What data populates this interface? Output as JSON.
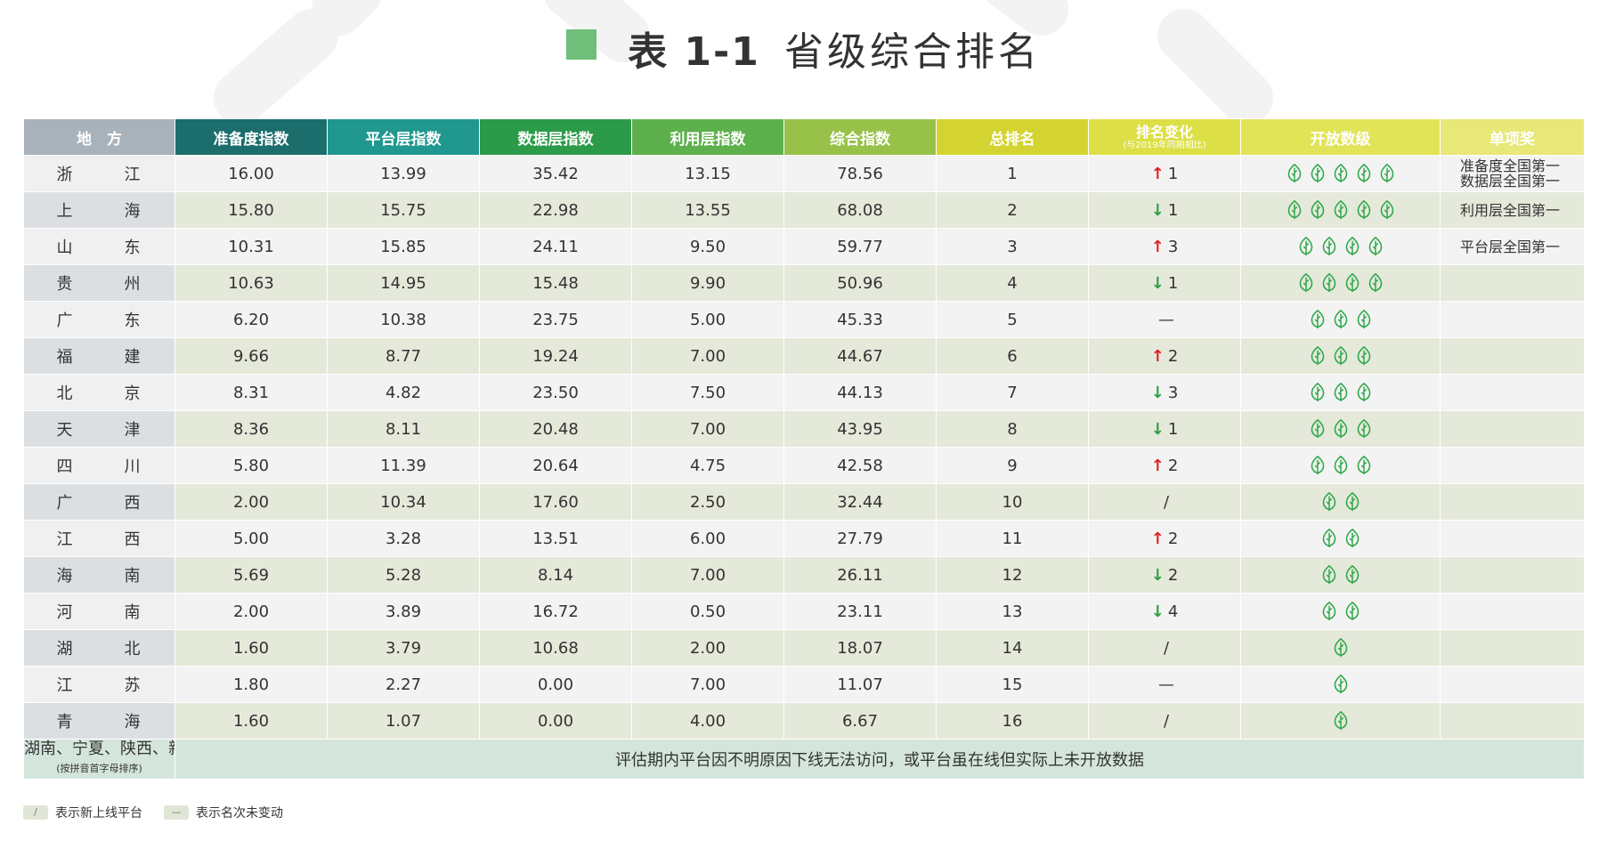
{
  "title": {
    "prefix": "表 1-1",
    "main": "省级综合排名"
  },
  "headers": {
    "region": "地　方",
    "readiness": "准备度指数",
    "platform": "平台层指数",
    "data": "数据层指数",
    "utilization": "利用层指数",
    "composite": "综合指数",
    "rank": "总排名",
    "change_main": "排名变化",
    "change_sub": "(与2019年同期相比)",
    "open_level": "开放数级",
    "award": "单项奖"
  },
  "header_colors": [
    "#a8b2ba",
    "#1c6e6c",
    "#20988f",
    "#2c9b49",
    "#5db04c",
    "#98c14a",
    "#d3d431",
    "#dcdf45",
    "#e2e458",
    "#e8e878"
  ],
  "rows": [
    {
      "region": "浙　江",
      "readiness": "16.00",
      "platform": "13.99",
      "data": "35.42",
      "utilization": "13.15",
      "composite": "78.56",
      "rank": "1",
      "change_dir": "up",
      "change_val": "1",
      "leaves": 5,
      "award": "准备度全国第一",
      "award2": "数据层全国第一"
    },
    {
      "region": "上　海",
      "readiness": "15.80",
      "platform": "15.75",
      "data": "22.98",
      "utilization": "13.55",
      "composite": "68.08",
      "rank": "2",
      "change_dir": "down",
      "change_val": "1",
      "leaves": 5,
      "award": "利用层全国第一",
      "award2": ""
    },
    {
      "region": "山　东",
      "readiness": "10.31",
      "platform": "15.85",
      "data": "24.11",
      "utilization": "9.50",
      "composite": "59.77",
      "rank": "3",
      "change_dir": "up",
      "change_val": "3",
      "leaves": 4,
      "award": "平台层全国第一",
      "award2": ""
    },
    {
      "region": "贵　州",
      "readiness": "10.63",
      "platform": "14.95",
      "data": "15.48",
      "utilization": "9.90",
      "composite": "50.96",
      "rank": "4",
      "change_dir": "down",
      "change_val": "1",
      "leaves": 4,
      "award": "",
      "award2": ""
    },
    {
      "region": "广　东",
      "readiness": "6.20",
      "platform": "10.38",
      "data": "23.75",
      "utilization": "5.00",
      "composite": "45.33",
      "rank": "5",
      "change_dir": "same",
      "change_val": "—",
      "leaves": 3,
      "award": "",
      "award2": ""
    },
    {
      "region": "福　建",
      "readiness": "9.66",
      "platform": "8.77",
      "data": "19.24",
      "utilization": "7.00",
      "composite": "44.67",
      "rank": "6",
      "change_dir": "up",
      "change_val": "2",
      "leaves": 3,
      "award": "",
      "award2": ""
    },
    {
      "region": "北　京",
      "readiness": "8.31",
      "platform": "4.82",
      "data": "23.50",
      "utilization": "7.50",
      "composite": "44.13",
      "rank": "7",
      "change_dir": "down",
      "change_val": "3",
      "leaves": 3,
      "award": "",
      "award2": ""
    },
    {
      "region": "天　津",
      "readiness": "8.36",
      "platform": "8.11",
      "data": "20.48",
      "utilization": "7.00",
      "composite": "43.95",
      "rank": "8",
      "change_dir": "down",
      "change_val": "1",
      "leaves": 3,
      "award": "",
      "award2": ""
    },
    {
      "region": "四　川",
      "readiness": "5.80",
      "platform": "11.39",
      "data": "20.64",
      "utilization": "4.75",
      "composite": "42.58",
      "rank": "9",
      "change_dir": "up",
      "change_val": "2",
      "leaves": 3,
      "award": "",
      "award2": ""
    },
    {
      "region": "广　西",
      "readiness": "2.00",
      "platform": "10.34",
      "data": "17.60",
      "utilization": "2.50",
      "composite": "32.44",
      "rank": "10",
      "change_dir": "new",
      "change_val": "/",
      "leaves": 2,
      "award": "",
      "award2": ""
    },
    {
      "region": "江　西",
      "readiness": "5.00",
      "platform": "3.28",
      "data": "13.51",
      "utilization": "6.00",
      "composite": "27.79",
      "rank": "11",
      "change_dir": "up",
      "change_val": "2",
      "leaves": 2,
      "award": "",
      "award2": ""
    },
    {
      "region": "海　南",
      "readiness": "5.69",
      "platform": "5.28",
      "data": "8.14",
      "utilization": "7.00",
      "composite": "26.11",
      "rank": "12",
      "change_dir": "down",
      "change_val": "2",
      "leaves": 2,
      "award": "",
      "award2": ""
    },
    {
      "region": "河　南",
      "readiness": "2.00",
      "platform": "3.89",
      "data": "16.72",
      "utilization": "0.50",
      "composite": "23.11",
      "rank": "13",
      "change_dir": "down",
      "change_val": "4",
      "leaves": 2,
      "award": "",
      "award2": ""
    },
    {
      "region": "湖　北",
      "readiness": "1.60",
      "platform": "3.79",
      "data": "10.68",
      "utilization": "2.00",
      "composite": "18.07",
      "rank": "14",
      "change_dir": "new",
      "change_val": "/",
      "leaves": 1,
      "award": "",
      "award2": ""
    },
    {
      "region": "江　苏",
      "readiness": "1.80",
      "platform": "2.27",
      "data": "0.00",
      "utilization": "7.00",
      "composite": "11.07",
      "rank": "15",
      "change_dir": "same",
      "change_val": "—",
      "leaves": 1,
      "award": "",
      "award2": ""
    },
    {
      "region": "青　海",
      "readiness": "1.60",
      "platform": "1.07",
      "data": "0.00",
      "utilization": "4.00",
      "composite": "6.67",
      "rank": "16",
      "change_dir": "new",
      "change_val": "/",
      "leaves": 1,
      "award": "",
      "award2": ""
    }
  ],
  "footer": {
    "regions": "湖南、宁夏、陕西、新疆",
    "regions_note": "(按拼音首字母排序)",
    "note": "评估期内平台因不明原因下线无法访问，或平台虽在线但实际上未开放数据"
  },
  "arrows": {
    "up": "↑",
    "down": "↓"
  },
  "legend": [
    {
      "symbol": "/",
      "label": "表示新上线平台"
    },
    {
      "symbol": "—",
      "label": "表示名次未变动"
    }
  ],
  "leaf_color": "#2fa84a"
}
